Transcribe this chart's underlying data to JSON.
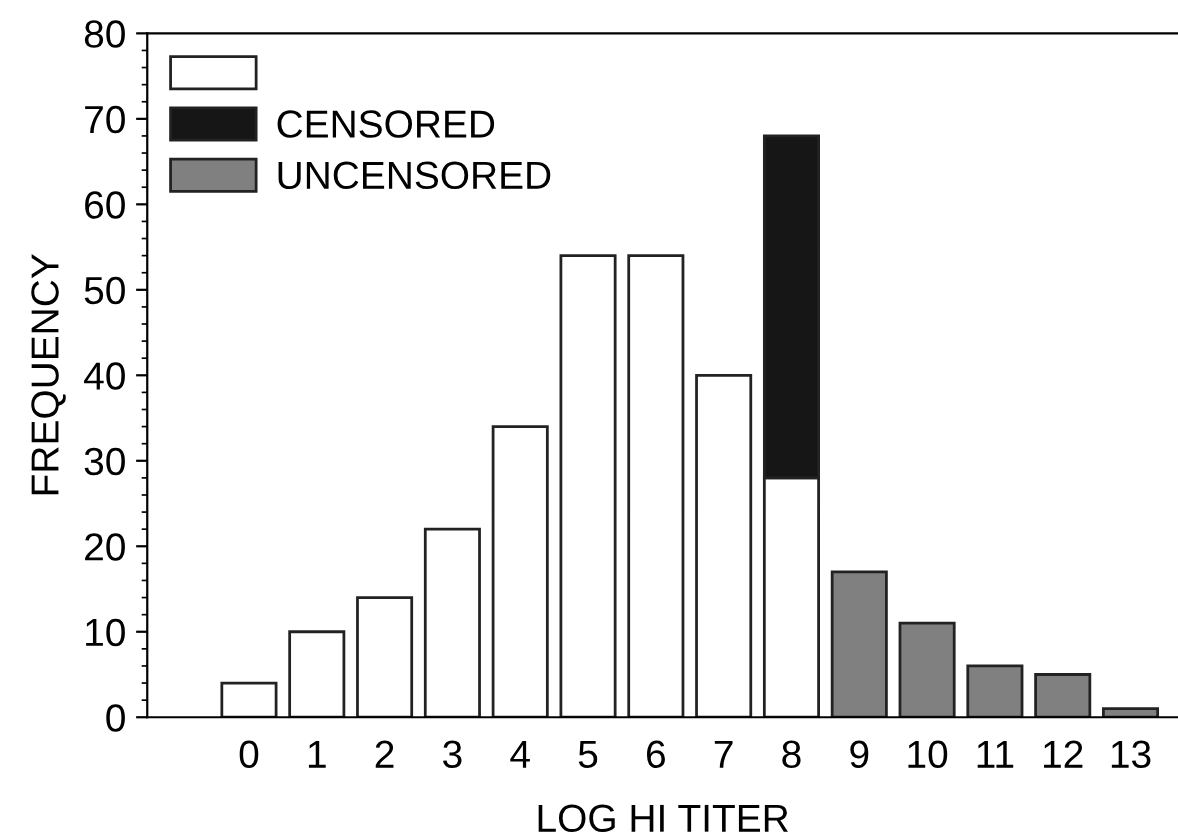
{
  "chart_data": {
    "type": "bar",
    "stacked": true,
    "xlabel": "LOG HI TITER",
    "ylabel": "FREQUENCY",
    "categories": [
      "0",
      "1",
      "2",
      "3",
      "4",
      "5",
      "6",
      "7",
      "8",
      "9",
      "10",
      "11",
      "12",
      "13"
    ],
    "series": [
      {
        "color": "#ffffff",
        "values": [
          4,
          10,
          14,
          22,
          34,
          54,
          54,
          40,
          28,
          null,
          null,
          null,
          null,
          null
        ]
      },
      {
        "name": "CENSORED",
        "color": "#161616",
        "values": [
          null,
          null,
          null,
          null,
          null,
          null,
          null,
          null,
          40,
          null,
          null,
          null,
          null,
          null
        ]
      },
      {
        "name": "UNCENSORED",
        "color": "#808080",
        "values": [
          null,
          null,
          null,
          null,
          null,
          null,
          null,
          null,
          null,
          17,
          11,
          6,
          5,
          1
        ]
      }
    ],
    "ylim": [
      0,
      80
    ],
    "yticks": [
      0,
      10,
      20,
      30,
      40,
      50,
      60,
      70,
      80
    ],
    "grid": false,
    "legend": "top left"
  }
}
